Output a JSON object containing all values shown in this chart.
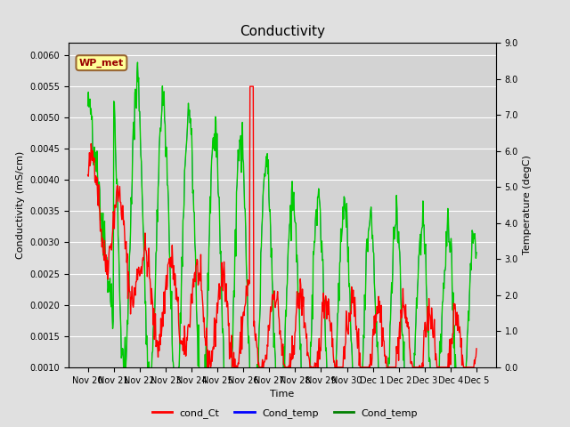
{
  "title": "Conductivity",
  "ylabel_left": "Conductivity (mS/cm)",
  "ylabel_right": "Temperature (degC)",
  "xlabel": "Time",
  "ylim_left": [
    0.001,
    0.0062
  ],
  "ylim_right": [
    0.0,
    9.0
  ],
  "yticks_left": [
    0.001,
    0.0015,
    0.002,
    0.0025,
    0.003,
    0.0035,
    0.004,
    0.0045,
    0.005,
    0.0055,
    0.006
  ],
  "yticks_right": [
    0.0,
    1.0,
    2.0,
    3.0,
    4.0,
    5.0,
    6.0,
    7.0,
    8.0,
    9.0
  ],
  "xtick_labels": [
    "Nov 20",
    "Nov 21",
    "Nov 22",
    "Nov 23",
    "Nov 24",
    "Nov 25",
    "Nov 26",
    "Nov 27",
    "Nov 28",
    "Nov 29",
    "Nov 30",
    "Dec 1",
    "Dec 2",
    "Dec 3",
    "Dec 4",
    "Dec 5"
  ],
  "annotation_text": "WP_met",
  "annotation_bbox_facecolor": "#ffff99",
  "annotation_bbox_edgecolor": "#996633",
  "annotation_text_color": "#990000",
  "legend_labels": [
    "cond_Ct",
    "Cond_temp",
    "Cond_temp"
  ],
  "legend_colors": [
    "red",
    "blue",
    "green"
  ],
  "line_color_red": "red",
  "line_color_blue": "blue",
  "line_color_green": "#00cc00",
  "bg_color": "#e0e0e0",
  "plot_bg_color": "#d3d3d3",
  "title_fontsize": 11,
  "tick_fontsize": 7,
  "label_fontsize": 8
}
